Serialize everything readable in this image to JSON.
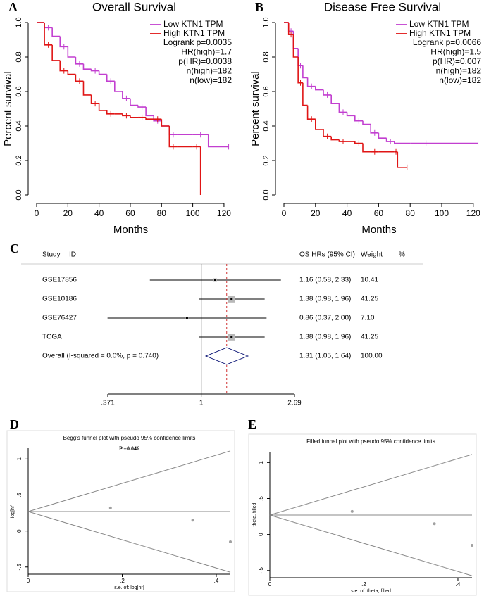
{
  "chart_data": [
    {
      "type": "step",
      "panel_label": "A",
      "title": "Overall Survival",
      "xlabel": "Months",
      "ylabel": "Percent survival",
      "xlim": [
        0,
        125
      ],
      "ylim": [
        0,
        1
      ],
      "xticks": [
        0,
        20,
        40,
        60,
        80,
        100,
        120
      ],
      "yticks": [
        {
          "value": 0,
          "label": "0.0"
        },
        0.2,
        0.4,
        0.6,
        0.8,
        {
          "value": 1,
          "label": "1.0"
        }
      ],
      "legend": "upper right",
      "series": [
        {
          "name": "Low KTN1 TPM",
          "color": "#c23fd0",
          "x": [
            0,
            5,
            10,
            15,
            20,
            25,
            30,
            35,
            40,
            45,
            50,
            55,
            60,
            65,
            70,
            75,
            80,
            85,
            90,
            100,
            110,
            123
          ],
          "values": [
            1.0,
            0.97,
            0.92,
            0.86,
            0.8,
            0.76,
            0.73,
            0.72,
            0.7,
            0.66,
            0.6,
            0.56,
            0.52,
            0.51,
            0.46,
            0.43,
            0.4,
            0.35,
            0.35,
            0.35,
            0.28,
            0.28
          ]
        },
        {
          "name": "High KTN1 TPM",
          "color": "#e01515",
          "x": [
            0,
            5,
            10,
            15,
            20,
            25,
            30,
            35,
            40,
            45,
            50,
            55,
            60,
            65,
            70,
            75,
            80,
            85,
            90,
            100,
            105
          ],
          "values": [
            1.0,
            0.87,
            0.78,
            0.72,
            0.7,
            0.66,
            0.58,
            0.53,
            0.49,
            0.47,
            0.47,
            0.46,
            0.45,
            0.45,
            0.44,
            0.44,
            0.4,
            0.28,
            0.28,
            0.28,
            0.0
          ]
        }
      ],
      "annotations": [
        "Logrank p=0.0035",
        "HR(high)=1.7",
        "p(HR)=0.0038",
        "n(high)=182",
        "n(low)=182"
      ]
    },
    {
      "type": "step",
      "panel_label": "B",
      "title": "Disease Free Survival",
      "xlabel": "Months",
      "ylabel": "Percent survival",
      "xlim": [
        0,
        125
      ],
      "ylim": [
        0,
        1
      ],
      "xticks": [
        0,
        20,
        40,
        60,
        80,
        100,
        120
      ],
      "yticks": [
        {
          "value": 0,
          "label": "0.0"
        },
        0.2,
        0.4,
        0.6,
        0.8,
        {
          "value": 1,
          "label": "1.0"
        }
      ],
      "legend": "upper right",
      "series": [
        {
          "name": "Low KTN1 TPM",
          "color": "#c23fd0",
          "x": [
            0,
            3,
            6,
            9,
            12,
            15,
            20,
            25,
            30,
            35,
            40,
            45,
            50,
            55,
            60,
            65,
            70,
            80,
            100,
            123
          ],
          "values": [
            1.0,
            0.95,
            0.85,
            0.75,
            0.68,
            0.63,
            0.61,
            0.58,
            0.53,
            0.48,
            0.46,
            0.43,
            0.41,
            0.36,
            0.33,
            0.31,
            0.3,
            0.3,
            0.3,
            0.3
          ]
        },
        {
          "name": "High KTN1 TPM",
          "color": "#e01515",
          "x": [
            0,
            3,
            6,
            9,
            12,
            15,
            20,
            25,
            30,
            35,
            40,
            45,
            50,
            55,
            60,
            70,
            72,
            78
          ],
          "values": [
            1.0,
            0.93,
            0.8,
            0.65,
            0.52,
            0.44,
            0.38,
            0.34,
            0.32,
            0.31,
            0.31,
            0.3,
            0.25,
            0.25,
            0.25,
            0.25,
            0.16,
            0.16
          ]
        }
      ],
      "annotations": [
        "Logrank p=0.0066",
        "HR(high)=1.5",
        "p(HR)=0.007",
        "n(high)=182",
        "n(low)=182"
      ]
    },
    {
      "type": "forest",
      "panel_label": "C",
      "headers": {
        "study": "Study",
        "id": "ID",
        "hr": "OS HRs (95% CI)",
        "weight": "Weight",
        "pct": "%"
      },
      "xscale": "log",
      "xlim": [
        0.371,
        2.69
      ],
      "xticks": [
        {
          "value": 0.371,
          "label": ".371"
        },
        1,
        2.69
      ],
      "null_value": 1,
      "categories": [
        "GSE17856",
        "GSE10186",
        "GSE76427",
        "TCGA"
      ],
      "values": [
        1.16,
        1.38,
        0.86,
        1.38
      ],
      "ci_low": [
        0.58,
        0.98,
        0.37,
        0.98
      ],
      "ci_high": [
        2.33,
        1.96,
        2.0,
        1.96
      ],
      "value_labels": [
        "1.16 (0.58, 2.33)",
        "1.38 (0.98, 1.96)",
        "0.86 (0.37, 2.00)",
        "1.38 (0.98, 1.96)"
      ],
      "weights": [
        10.41,
        41.25,
        7.1,
        41.25
      ],
      "weight_labels": [
        "10.41",
        "41.25",
        "7.10",
        "41.25"
      ],
      "overall": {
        "label": "Overall  (I-squared = 0.0%, p = 0.740)",
        "value": 1.31,
        "ci_low": 1.05,
        "ci_high": 1.64,
        "value_label": "1.31 (1.05, 1.64)",
        "weight": 100,
        "weight_label": "100.00"
      }
    },
    {
      "type": "funnel",
      "panel_label": "D",
      "title": "Begg's funnel plot with pseudo 95% confidence limits",
      "annotation": "P =0.046",
      "xlabel": "s.e. of: log[hr]",
      "ylabel": "log[hr]",
      "xlim": [
        0,
        0.43
      ],
      "ylim": [
        -0.6,
        1.15
      ],
      "xticks": [
        0,
        {
          "value": 0.2,
          "label": ".2"
        },
        {
          "value": 0.4,
          "label": ".4"
        }
      ],
      "yticks": [
        {
          "value": -0.5,
          "label": "-.5"
        },
        0,
        {
          "value": 0.5,
          "label": ".5"
        },
        1
      ],
      "summary": 0.27,
      "x": [
        0.175,
        0.35,
        0.43
      ],
      "values": [
        0.32,
        0.15,
        -0.15
      ],
      "color": "#a0a0a0"
    },
    {
      "type": "funnel",
      "panel_label": "E",
      "title": "Filled funnel plot with pseudo 95% confidence limits",
      "xlabel": "s.e. of: theta, filled",
      "ylabel": "theta, filled",
      "xlim": [
        0,
        0.43
      ],
      "ylim": [
        -0.6,
        1.15
      ],
      "xticks": [
        0,
        {
          "value": 0.2,
          "label": ".2"
        },
        {
          "value": 0.4,
          "label": ".4"
        }
      ],
      "yticks": [
        {
          "value": -0.5,
          "label": "-.5"
        },
        0,
        {
          "value": 0.5,
          "label": ".5"
        },
        1
      ],
      "summary": 0.27,
      "x": [
        0.175,
        0.35,
        0.43
      ],
      "values": [
        0.32,
        0.15,
        -0.15
      ],
      "color": "#a0a0a0"
    }
  ]
}
